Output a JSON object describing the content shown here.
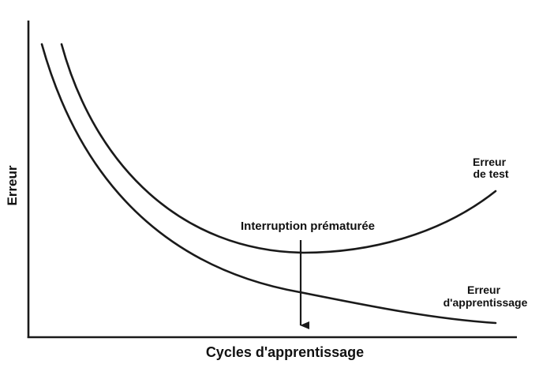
{
  "diagram": {
    "x_axis_label": "Cycles d'apprentissage",
    "y_axis_label": "Erreur",
    "annotation": "Interruption prématurée",
    "test_curve_label": [
      "Erreur",
      "de test"
    ],
    "training_curve_label": [
      "Erreur",
      "d'apprentissage"
    ]
  }
}
